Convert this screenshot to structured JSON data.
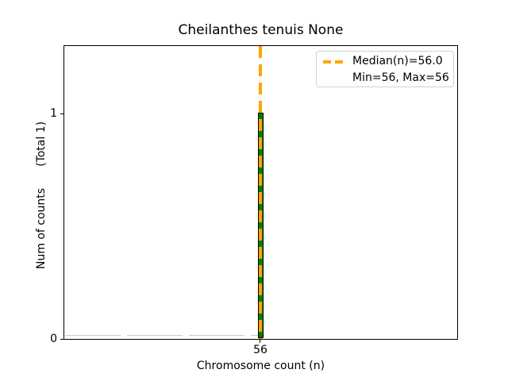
{
  "figure": {
    "title": "Cheilanthes tenuis None",
    "xlabel": "Chromosome count (n)",
    "ylabel_main": "Num of counts",
    "ylabel_total": "(Total 1)",
    "xticks": [
      "56"
    ],
    "yticks": [
      "0",
      "1"
    ],
    "legend": {
      "items": [
        {
          "label": "Median(n)=56.0",
          "handle": "orange-dashed-line"
        },
        {
          "label": "Min=56, Max=56",
          "handle": "none"
        }
      ]
    },
    "colors": {
      "bar_fill": "#008000",
      "bar_edge": "#000000",
      "median_line": "#FFA500",
      "axes_spine": "#000000",
      "legend_border": "#d2d2d2",
      "background": "#ffffff"
    }
  },
  "chart_data": {
    "type": "bar",
    "title": "Cheilanthes tenuis None",
    "xlabel": "Chromosome count (n)",
    "ylabel": "Num of counts    (Total 1)",
    "categories": [
      56
    ],
    "values": [
      1
    ],
    "series": [
      {
        "name": "chromosome count histogram",
        "values": [
          1
        ]
      }
    ],
    "xtick_labels": [
      "56"
    ],
    "ytick_labels": [
      0,
      1
    ],
    "ylim": [
      0,
      1.3
    ],
    "grid": false,
    "legend_position": "upper right",
    "annotations": {
      "median_n": 56.0,
      "min_n": 56,
      "max_n": 56,
      "total_counts": 1,
      "median_line_style": "orange dashed vertical line at x=56"
    }
  }
}
